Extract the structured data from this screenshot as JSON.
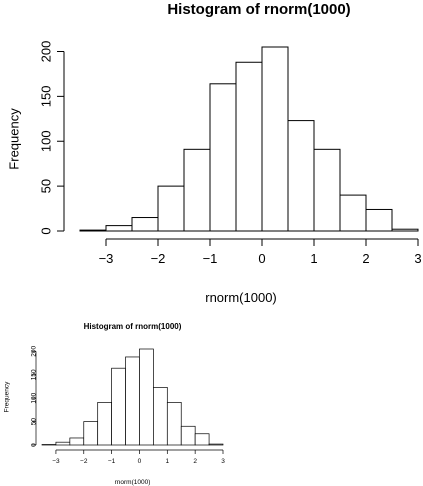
{
  "chart_data": [
    {
      "type": "bar",
      "title": "Histogram of rnorm(1000)",
      "xlabel": "rnorm(1000)",
      "ylabel": "Frequency",
      "bins": [
        {
          "from": -3.5,
          "to": -3.0,
          "count": 1
        },
        {
          "from": -3.0,
          "to": -2.5,
          "count": 6
        },
        {
          "from": -2.5,
          "to": -2.0,
          "count": 15
        },
        {
          "from": -2.0,
          "to": -1.5,
          "count": 50
        },
        {
          "from": -1.5,
          "to": -1.0,
          "count": 91
        },
        {
          "from": -1.0,
          "to": -0.5,
          "count": 164
        },
        {
          "from": -0.5,
          "to": 0.0,
          "count": 188
        },
        {
          "from": 0.0,
          "to": 0.5,
          "count": 205
        },
        {
          "from": 0.5,
          "to": 1.0,
          "count": 123
        },
        {
          "from": 1.0,
          "to": 1.5,
          "count": 91
        },
        {
          "from": 1.5,
          "to": 2.0,
          "count": 40
        },
        {
          "from": 2.0,
          "to": 2.5,
          "count": 24
        },
        {
          "from": 2.5,
          "to": 3.0,
          "count": 2
        }
      ],
      "x_ticks": [
        -3,
        -2,
        -1,
        0,
        1,
        2,
        3
      ],
      "x_tick_labels": [
        "−3",
        "−2",
        "−1",
        "0",
        "1",
        "2",
        "3"
      ],
      "y_ticks": [
        0,
        50,
        100,
        150,
        200
      ],
      "y_tick_labels": [
        "0",
        "50",
        "100",
        "150",
        "200"
      ],
      "xlim": [
        -3.5,
        3.0
      ],
      "ylim": [
        0,
        205
      ],
      "grid": false,
      "legend": "none"
    },
    {
      "type": "bar",
      "title": "Histogram of rnorm(1000)",
      "xlabel": "rnorm(1000)",
      "ylabel": "Frequency",
      "bins": [
        {
          "from": -3.5,
          "to": -3.0,
          "count": 1
        },
        {
          "from": -3.0,
          "to": -2.5,
          "count": 6
        },
        {
          "from": -2.5,
          "to": -2.0,
          "count": 15
        },
        {
          "from": -2.0,
          "to": -1.5,
          "count": 50
        },
        {
          "from": -1.5,
          "to": -1.0,
          "count": 91
        },
        {
          "from": -1.0,
          "to": -0.5,
          "count": 164
        },
        {
          "from": -0.5,
          "to": 0.0,
          "count": 188
        },
        {
          "from": 0.0,
          "to": 0.5,
          "count": 205
        },
        {
          "from": 0.5,
          "to": 1.0,
          "count": 123
        },
        {
          "from": 1.0,
          "to": 1.5,
          "count": 91
        },
        {
          "from": 1.5,
          "to": 2.0,
          "count": 40
        },
        {
          "from": 2.0,
          "to": 2.5,
          "count": 24
        },
        {
          "from": 2.5,
          "to": 3.0,
          "count": 2
        }
      ],
      "x_ticks": [
        -3,
        -2,
        -1,
        0,
        1,
        2,
        3
      ],
      "x_tick_labels": [
        "−3",
        "−2",
        "−1",
        "0",
        "1",
        "2",
        "3"
      ],
      "y_ticks": [
        0,
        50,
        100,
        150,
        200
      ],
      "y_tick_labels": [
        "0",
        "50",
        "100",
        "150",
        "200"
      ],
      "xlim": [
        -3.5,
        3.0
      ],
      "ylim": [
        0,
        205
      ],
      "grid": false,
      "legend": "none"
    }
  ]
}
